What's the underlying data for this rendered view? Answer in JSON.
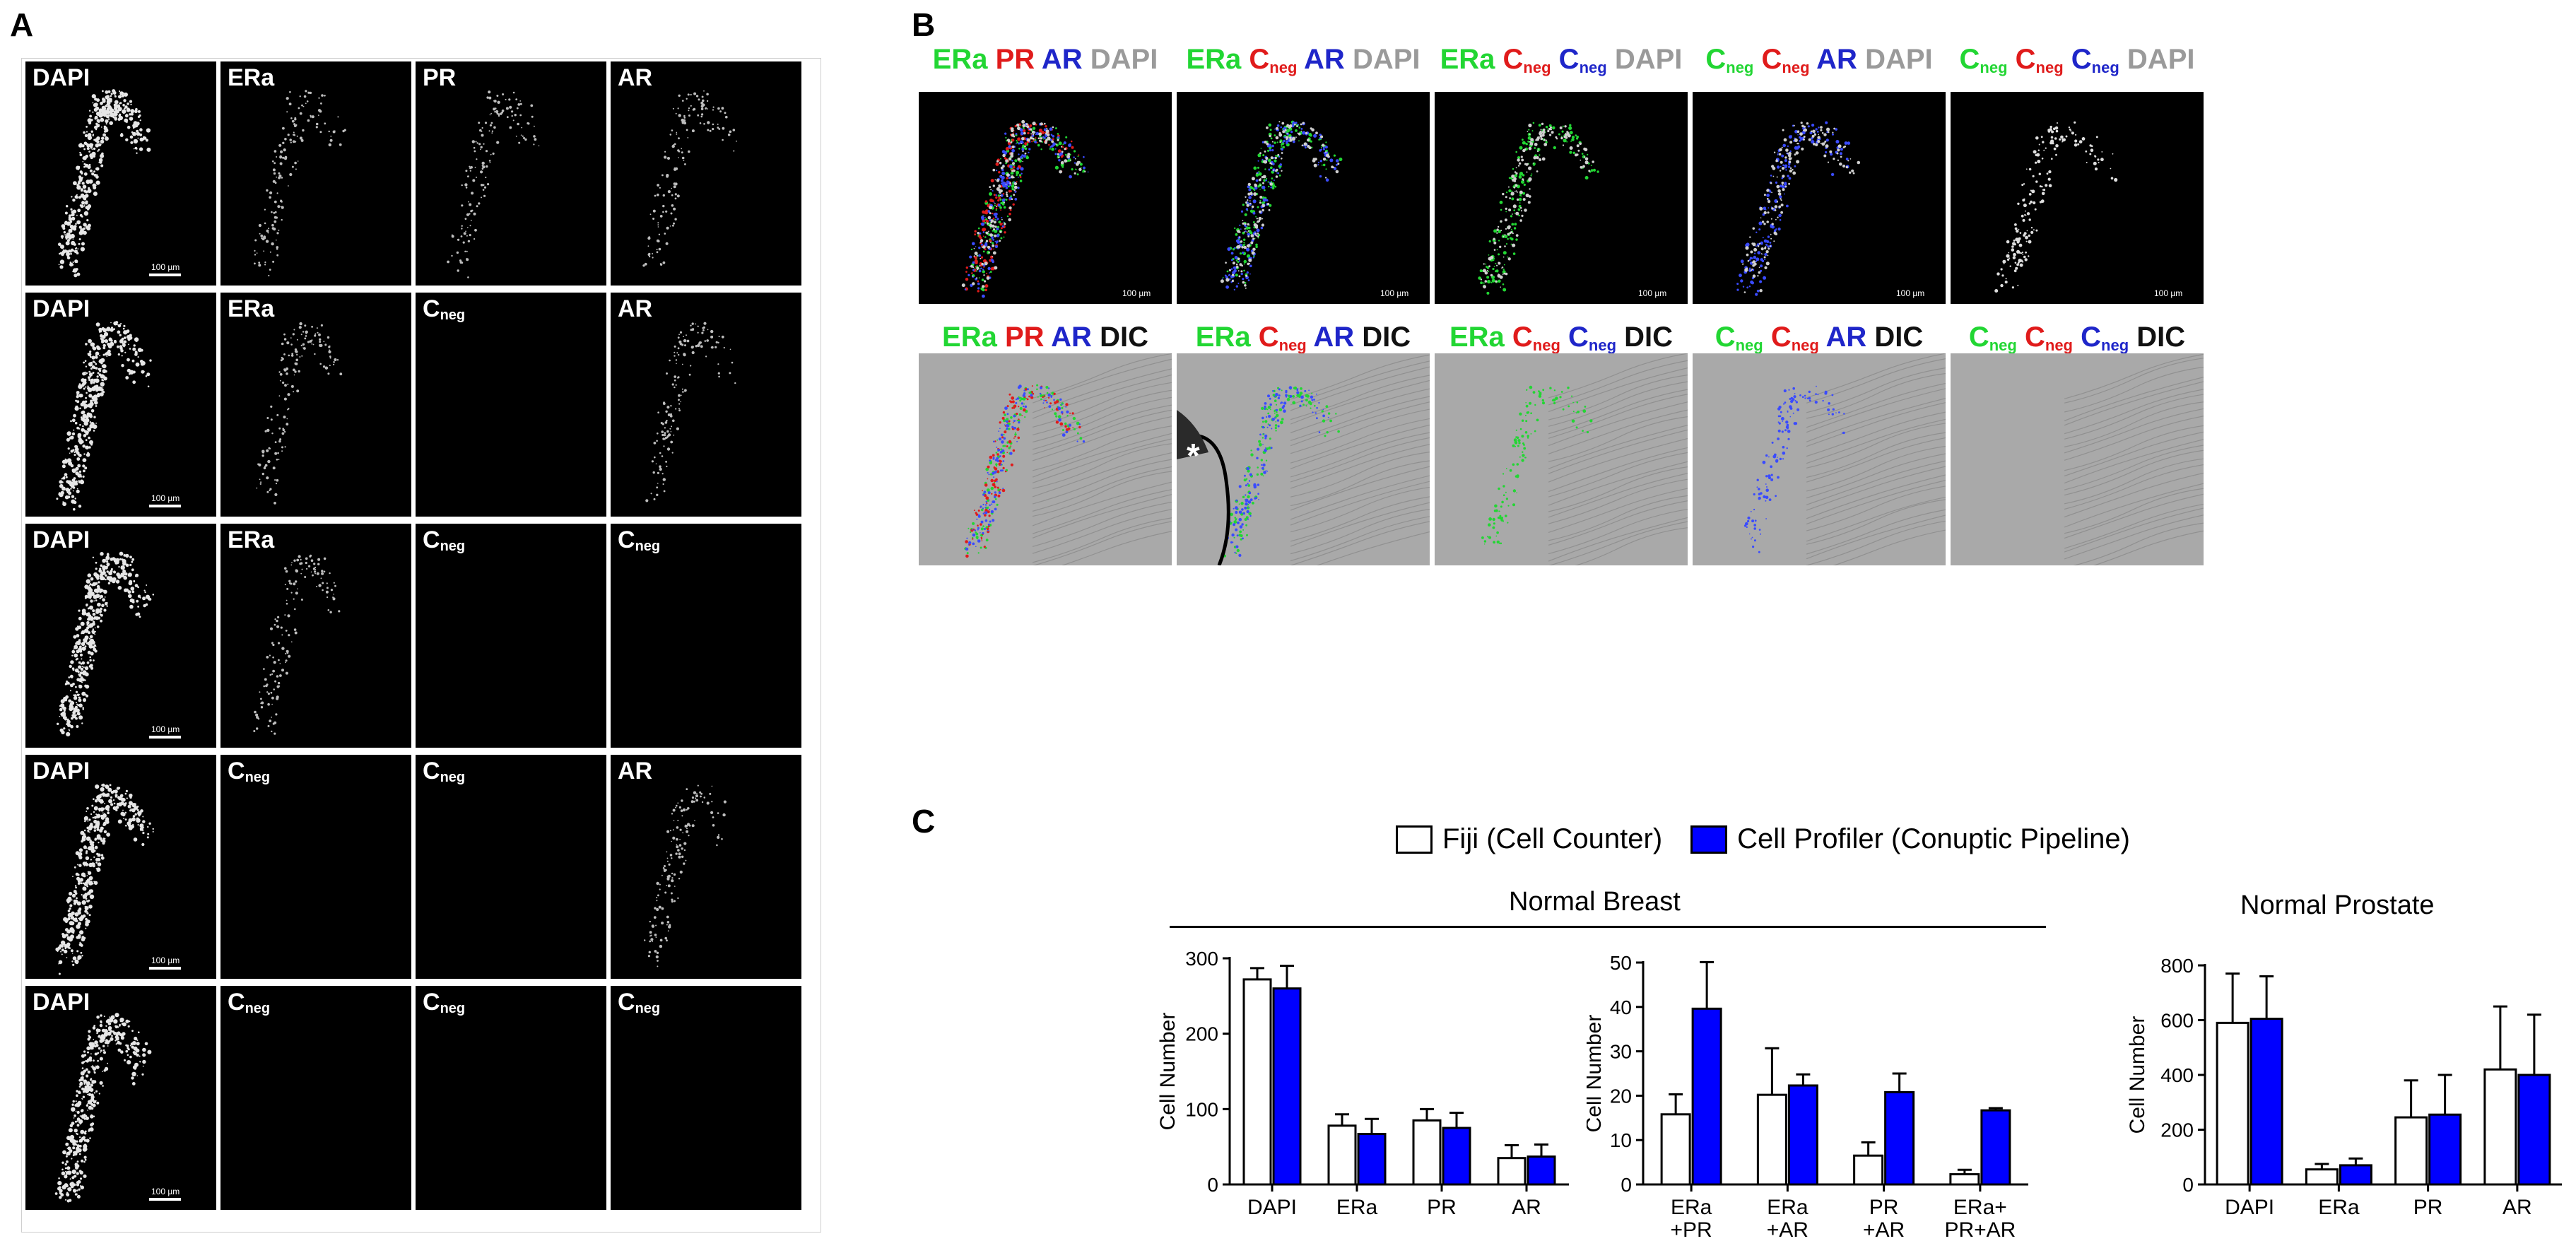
{
  "panels": {
    "a": "A",
    "b": "B",
    "c": "C"
  },
  "panel_a": {
    "scale_label": "100 µm",
    "rows": [
      [
        {
          "t": "DAPI",
          "s": ""
        },
        {
          "t": "ERa",
          "s": ""
        },
        {
          "t": "PR",
          "s": ""
        },
        {
          "t": "AR",
          "s": ""
        }
      ],
      [
        {
          "t": "DAPI",
          "s": ""
        },
        {
          "t": "ERa",
          "s": ""
        },
        {
          "t": "C",
          "s": "neg"
        },
        {
          "t": "AR",
          "s": ""
        }
      ],
      [
        {
          "t": "DAPI",
          "s": ""
        },
        {
          "t": "ERa",
          "s": ""
        },
        {
          "t": "C",
          "s": "neg"
        },
        {
          "t": "C",
          "s": "neg"
        }
      ],
      [
        {
          "t": "DAPI",
          "s": ""
        },
        {
          "t": "C",
          "s": "neg"
        },
        {
          "t": "C",
          "s": "neg"
        },
        {
          "t": "AR",
          "s": ""
        }
      ],
      [
        {
          "t": "DAPI",
          "s": ""
        },
        {
          "t": "C",
          "s": "neg"
        },
        {
          "t": "C",
          "s": "neg"
        },
        {
          "t": "C",
          "s": "neg"
        }
      ]
    ]
  },
  "panel_b": {
    "top_headers": [
      [
        {
          "t": "ERa",
          "s": "",
          "c": "green"
        },
        {
          "t": "PR",
          "s": "",
          "c": "red"
        },
        {
          "t": "AR",
          "s": "",
          "c": "blue"
        },
        {
          "t": "DAPI",
          "s": "",
          "c": "gray"
        }
      ],
      [
        {
          "t": "ERa",
          "s": "",
          "c": "green"
        },
        {
          "t": "C",
          "s": "neg",
          "c": "red"
        },
        {
          "t": "AR",
          "s": "",
          "c": "blue"
        },
        {
          "t": "DAPI",
          "s": "",
          "c": "gray"
        }
      ],
      [
        {
          "t": "ERa",
          "s": "",
          "c": "green"
        },
        {
          "t": "C",
          "s": "neg",
          "c": "red"
        },
        {
          "t": "C",
          "s": "neg",
          "c": "blue"
        },
        {
          "t": "DAPI",
          "s": "",
          "c": "gray"
        }
      ],
      [
        {
          "t": "C",
          "s": "neg",
          "c": "green"
        },
        {
          "t": "C",
          "s": "neg",
          "c": "red"
        },
        {
          "t": "AR",
          "s": "",
          "c": "blue"
        },
        {
          "t": "DAPI",
          "s": "",
          "c": "gray"
        }
      ],
      [
        {
          "t": "C",
          "s": "neg",
          "c": "green"
        },
        {
          "t": "C",
          "s": "neg",
          "c": "red"
        },
        {
          "t": "C",
          "s": "neg",
          "c": "blue"
        },
        {
          "t": "DAPI",
          "s": "",
          "c": "gray"
        }
      ]
    ],
    "bottom_headers": [
      [
        {
          "t": "ERa",
          "s": "",
          "c": "green"
        },
        {
          "t": "PR",
          "s": "",
          "c": "red"
        },
        {
          "t": "AR",
          "s": "",
          "c": "blue"
        },
        {
          "t": "DIC",
          "s": "",
          "c": "black"
        }
      ],
      [
        {
          "t": "ERa",
          "s": "",
          "c": "green"
        },
        {
          "t": "C",
          "s": "neg",
          "c": "red"
        },
        {
          "t": "AR",
          "s": "",
          "c": "blue"
        },
        {
          "t": "DIC",
          "s": "",
          "c": "black"
        }
      ],
      [
        {
          "t": "ERa",
          "s": "",
          "c": "green"
        },
        {
          "t": "C",
          "s": "neg",
          "c": "red"
        },
        {
          "t": "C",
          "s": "neg",
          "c": "blue"
        },
        {
          "t": "DIC",
          "s": "",
          "c": "black"
        }
      ],
      [
        {
          "t": "C",
          "s": "neg",
          "c": "green"
        },
        {
          "t": "C",
          "s": "neg",
          "c": "red"
        },
        {
          "t": "AR",
          "s": "",
          "c": "blue"
        },
        {
          "t": "DIC",
          "s": "",
          "c": "black"
        }
      ],
      [
        {
          "t": "C",
          "s": "neg",
          "c": "green"
        },
        {
          "t": "C",
          "s": "neg",
          "c": "red"
        },
        {
          "t": "C",
          "s": "neg",
          "c": "blue"
        },
        {
          "t": "DIC",
          "s": "",
          "c": "black"
        }
      ]
    ],
    "asterisk": "*",
    "scale_label": "100 µm"
  },
  "panel_c": {
    "legend": {
      "open": "Fiji (Cell Counter)",
      "filled": "Cell Profiler (Conuptic Pipeline)"
    },
    "group_titles": {
      "breast": "Normal Breast",
      "prostate": "Normal Prostate"
    }
  },
  "colors": {
    "fiji": "#ffffff",
    "cellprofiler": "#0000ff",
    "green": "#22d633",
    "red": "#e01b1b",
    "blue": "#1f26c9"
  },
  "chart_data": [
    {
      "type": "bar",
      "title": "Normal Breast",
      "categories": [
        "DAPI",
        "ERa",
        "PR",
        "AR"
      ],
      "ylabel": "Cell Number",
      "ylim": [
        0,
        300
      ],
      "yticks": [
        0,
        100,
        200,
        300
      ],
      "series": [
        {
          "name": "Fiji (Cell Counter)",
          "values": [
            272,
            78,
            85,
            35
          ],
          "errors": [
            15,
            15,
            15,
            17
          ]
        },
        {
          "name": "Cell Profiler (Conuptic Pipeline)",
          "values": [
            260,
            67,
            75,
            37
          ],
          "errors": [
            30,
            20,
            20,
            16
          ]
        }
      ]
    },
    {
      "type": "bar",
      "title": "Normal Breast",
      "categories": [
        [
          "ERa",
          "+PR"
        ],
        [
          "ERa",
          "+AR"
        ],
        [
          "PR",
          "+AR"
        ],
        [
          "ERa+",
          "PR+AR"
        ]
      ],
      "ylabel": "Cell Number",
      "ylim": [
        0,
        50
      ],
      "yticks": [
        0,
        10,
        20,
        30,
        40,
        50
      ],
      "series": [
        {
          "name": "Fiji (Cell Counter)",
          "values": [
            15.8,
            20.2,
            6.5,
            2.3
          ],
          "errors": [
            4.5,
            10.5,
            3,
            1
          ]
        },
        {
          "name": "Cell Profiler (Conuptic Pipeline)",
          "values": [
            39.6,
            22.3,
            20.8,
            16.7
          ],
          "errors": [
            10.5,
            2.5,
            4.2,
            0.5
          ]
        }
      ]
    },
    {
      "type": "bar",
      "title": "Normal Prostate",
      "categories": [
        "DAPI",
        "ERa",
        "PR",
        "AR"
      ],
      "ylabel": "Cell Number",
      "ylim": [
        0,
        800
      ],
      "yticks": [
        0,
        200,
        400,
        600,
        800
      ],
      "series": [
        {
          "name": "Fiji (Cell Counter)",
          "values": [
            590,
            55,
            245,
            420
          ],
          "errors": [
            180,
            20,
            135,
            230
          ]
        },
        {
          "name": "Cell Profiler (Conuptic Pipeline)",
          "values": [
            605,
            70,
            255,
            400
          ],
          "errors": [
            155,
            25,
            145,
            220
          ]
        }
      ]
    }
  ]
}
